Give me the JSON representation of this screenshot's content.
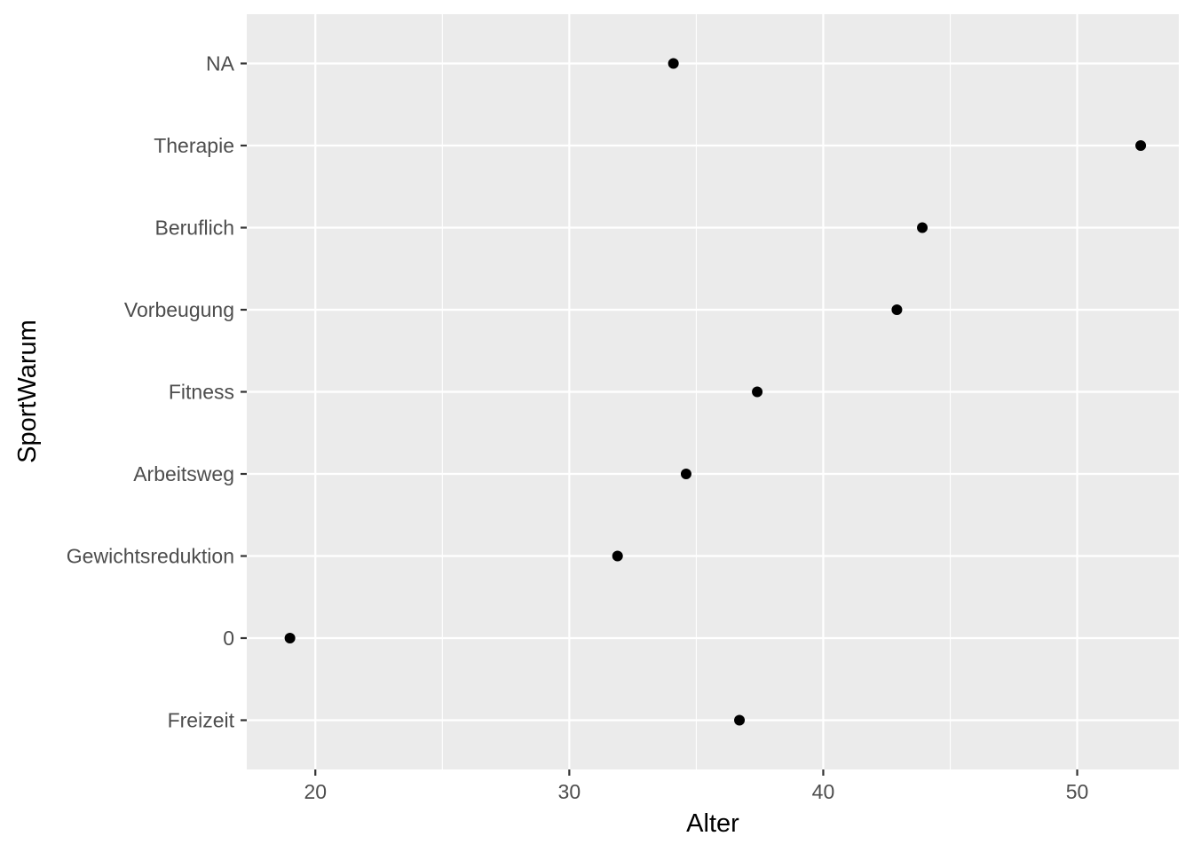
{
  "chart_data": {
    "type": "scatter",
    "title": "",
    "xlabel": "Alter",
    "ylabel": "SportWarum",
    "xlim": [
      17.3,
      54.0
    ],
    "x_ticks": [
      20,
      30,
      40,
      50
    ],
    "categories": [
      "Freizeit",
      "0",
      "Gewichtsreduktion",
      "Arbeitsweg",
      "Fitness",
      "Vorbeugung",
      "Beruflich",
      "Therapie",
      "NA"
    ],
    "points": [
      {
        "category": "Freizeit",
        "x": 36.7
      },
      {
        "category": "0",
        "x": 19.0
      },
      {
        "category": "Gewichtsreduktion",
        "x": 31.9
      },
      {
        "category": "Arbeitsweg",
        "x": 34.6
      },
      {
        "category": "Fitness",
        "x": 37.4
      },
      {
        "category": "Vorbeugung",
        "x": 42.9
      },
      {
        "category": "Beruflich",
        "x": 43.9
      },
      {
        "category": "Therapie",
        "x": 52.5
      },
      {
        "category": "NA",
        "x": 34.1
      }
    ],
    "grid": true,
    "legend": "none",
    "panel_background": "#ebebeb",
    "gridline_color": "#ffffff",
    "point_color": "#000000"
  }
}
